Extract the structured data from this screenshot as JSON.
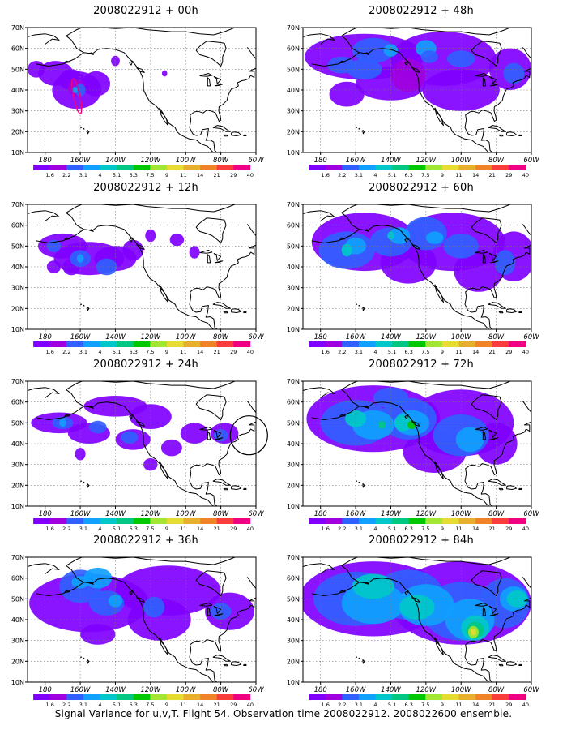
{
  "colors": {
    "scale": [
      "#8000ff",
      "#a000e0",
      "#3060ff",
      "#10a0ff",
      "#00c8c8",
      "#00c882",
      "#00c800",
      "#a0e632",
      "#e6dc32",
      "#e6af2d",
      "#f08228",
      "#fa3c3c",
      "#f00082"
    ],
    "coast": "#000000",
    "grid": "#777777"
  },
  "colorbar_labels": [
    "1.6",
    "2.2",
    "3.1",
    "4",
    "5.1",
    "6.3",
    "7.5",
    "9",
    "11",
    "14",
    "21",
    "29",
    "40"
  ],
  "lat_labels": [
    "70N",
    "60N",
    "50N",
    "40N",
    "30N",
    "20N",
    "10N"
  ],
  "lon_labels": [
    "180",
    "160W",
    "140W",
    "120W",
    "100W",
    "80W",
    "60W"
  ],
  "panels": [
    {
      "title": "2008022912 + 00h"
    },
    {
      "title": "2008022912 + 48h"
    },
    {
      "title": "2008022912 + 12h"
    },
    {
      "title": "2008022912 + 60h"
    },
    {
      "title": "2008022912 + 24h"
    },
    {
      "title": "2008022912 + 72h"
    },
    {
      "title": "2008022912 + 36h"
    },
    {
      "title": "2008022912 + 84h"
    }
  ],
  "footer": "Signal Variance for u,v,T. Flight 54. Observation time 2008022912. 2008022600 ensemble."
}
